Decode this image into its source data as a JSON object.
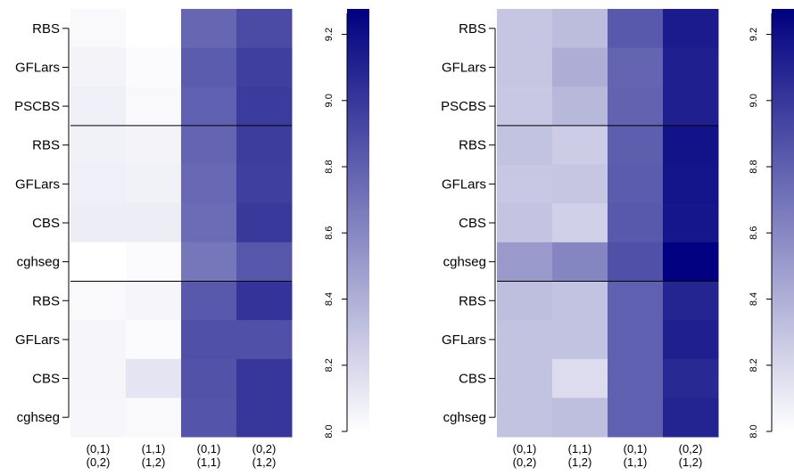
{
  "chart_data": [
    {
      "type": "heatmap",
      "title": "",
      "rows": [
        "RBS",
        "GFLars",
        "PSCBS",
        "RBS",
        "GFLars",
        "CBS",
        "cghseg",
        "RBS",
        "GFLars",
        "CBS",
        "cghseg"
      ],
      "columns": [
        [
          "(0,1)",
          "(0,2)"
        ],
        [
          "(1,1)",
          "(1,2)"
        ],
        [
          "(0,1)",
          "(1,1)"
        ],
        [
          "(0,2)",
          "(1,2)"
        ]
      ],
      "group_separators_after_row": [
        2,
        6
      ],
      "values": [
        [
          8.03,
          8.0,
          8.75,
          8.88
        ],
        [
          8.06,
          8.02,
          8.8,
          8.94
        ],
        [
          8.08,
          8.03,
          8.78,
          8.96
        ],
        [
          8.07,
          8.06,
          8.76,
          8.95
        ],
        [
          8.08,
          8.07,
          8.74,
          8.94
        ],
        [
          8.09,
          8.09,
          8.72,
          8.97
        ],
        [
          7.99,
          8.02,
          8.67,
          8.83
        ],
        [
          8.03,
          8.05,
          8.82,
          9.0
        ],
        [
          8.05,
          8.02,
          8.86,
          8.86
        ],
        [
          8.05,
          8.13,
          8.85,
          8.98
        ],
        [
          8.04,
          8.03,
          8.84,
          8.98
        ]
      ],
      "colorbar": {
        "ticks": [
          "8.0",
          "8.2",
          "8.4",
          "8.6",
          "8.8",
          "9.0",
          "9.2"
        ],
        "min": 8.0,
        "max": 9.25
      }
    },
    {
      "type": "heatmap",
      "title": "",
      "rows": [
        "RBS",
        "GFLars",
        "PSCBS",
        "RBS",
        "GFLars",
        "CBS",
        "cghseg",
        "RBS",
        "GFLars",
        "CBS",
        "cghseg"
      ],
      "columns": [
        [
          "(0,1)",
          "(0,2)"
        ],
        [
          "(1,1)",
          "(1,2)"
        ],
        [
          "(0,1)",
          "(1,1)"
        ],
        [
          "(0,2)",
          "(1,2)"
        ]
      ],
      "group_separators_after_row": [
        2,
        6
      ],
      "values": [
        [
          8.28,
          8.33,
          8.82,
          9.12
        ],
        [
          8.28,
          8.4,
          8.76,
          9.1
        ],
        [
          8.27,
          8.35,
          8.77,
          9.1
        ],
        [
          8.3,
          8.25,
          8.79,
          9.16
        ],
        [
          8.27,
          8.28,
          8.8,
          9.15
        ],
        [
          8.29,
          8.23,
          8.82,
          9.14
        ],
        [
          8.5,
          8.6,
          8.86,
          9.5
        ],
        [
          8.32,
          8.3,
          8.78,
          9.07
        ],
        [
          8.3,
          8.3,
          8.78,
          9.1
        ],
        [
          8.3,
          8.17,
          8.78,
          9.05
        ],
        [
          8.3,
          8.32,
          8.78,
          9.08
        ]
      ],
      "colorbar": {
        "ticks": [
          "8.0",
          "8.2",
          "8.4",
          "8.6",
          "8.8",
          "9.0",
          "9.2"
        ],
        "min": 8.0,
        "max": 9.25
      }
    }
  ]
}
